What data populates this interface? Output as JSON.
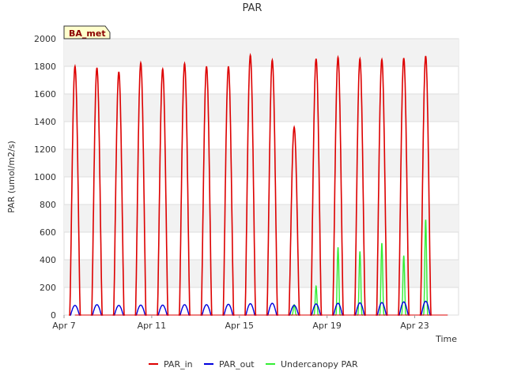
{
  "chart_data": {
    "type": "line",
    "title": "PAR",
    "badge": "BA_met",
    "xlabel": "Time",
    "ylabel": "PAR (umol/m2/s)",
    "ylim": [
      0,
      2000
    ],
    "xlim": [
      7.0,
      25.0
    ],
    "yticks": [
      "0",
      "200",
      "400",
      "600",
      "800",
      "1000",
      "1200",
      "1400",
      "1600",
      "1800",
      "2000"
    ],
    "xticks": [
      {
        "day": 7,
        "label": "Apr 7"
      },
      {
        "day": 11,
        "label": "Apr 11"
      },
      {
        "day": 15,
        "label": "Apr 15"
      },
      {
        "day": 19,
        "label": "Apr 19"
      },
      {
        "day": 23,
        "label": "Apr 23"
      }
    ],
    "grid": true,
    "legend_position": "bottom",
    "series": [
      {
        "name": "PAR_in",
        "color": "#dd0000",
        "daily_peaks": [
          {
            "date": "Apr 7",
            "peak": 1800
          },
          {
            "date": "Apr 8",
            "peak": 1790
          },
          {
            "date": "Apr 9",
            "peak": 1760
          },
          {
            "date": "Apr 10",
            "peak": 1825
          },
          {
            "date": "Apr 11",
            "peak": 1780
          },
          {
            "date": "Apr 12",
            "peak": 1820
          },
          {
            "date": "Apr 13",
            "peak": 1800
          },
          {
            "date": "Apr 14",
            "peak": 1800
          },
          {
            "date": "Apr 15",
            "peak": 1880
          },
          {
            "date": "Apr 16",
            "peak": 1845
          },
          {
            "date": "Apr 17",
            "peak": 1360
          },
          {
            "date": "Apr 18",
            "peak": 1855
          },
          {
            "date": "Apr 19",
            "peak": 1865
          },
          {
            "date": "Apr 20",
            "peak": 1855
          },
          {
            "date": "Apr 21",
            "peak": 1850
          },
          {
            "date": "Apr 22",
            "peak": 1860
          },
          {
            "date": "Apr 23",
            "peak": 1875
          }
        ]
      },
      {
        "name": "PAR_out",
        "color": "#0000dd",
        "daily_peaks": [
          {
            "date": "Apr 7",
            "peak": 70
          },
          {
            "date": "Apr 8",
            "peak": 75
          },
          {
            "date": "Apr 9",
            "peak": 70
          },
          {
            "date": "Apr 10",
            "peak": 72
          },
          {
            "date": "Apr 11",
            "peak": 72
          },
          {
            "date": "Apr 12",
            "peak": 75
          },
          {
            "date": "Apr 13",
            "peak": 75
          },
          {
            "date": "Apr 14",
            "peak": 78
          },
          {
            "date": "Apr 15",
            "peak": 82
          },
          {
            "date": "Apr 16",
            "peak": 85
          },
          {
            "date": "Apr 17",
            "peak": 70
          },
          {
            "date": "Apr 18",
            "peak": 80
          },
          {
            "date": "Apr 19",
            "peak": 85
          },
          {
            "date": "Apr 20",
            "peak": 88
          },
          {
            "date": "Apr 21",
            "peak": 90
          },
          {
            "date": "Apr 22",
            "peak": 95
          },
          {
            "date": "Apr 23",
            "peak": 100
          }
        ]
      },
      {
        "name": "Undercanopy PAR",
        "color": "#33ee33",
        "daily_peaks": [
          {
            "date": "Apr 17",
            "peak": 75
          },
          {
            "date": "Apr 18",
            "peak": 210
          },
          {
            "date": "Apr 19",
            "peak": 490
          },
          {
            "date": "Apr 20",
            "peak": 460
          },
          {
            "date": "Apr 21",
            "peak": 520
          },
          {
            "date": "Apr 22",
            "peak": 430
          },
          {
            "date": "Apr 23",
            "peak": 690
          }
        ]
      }
    ]
  }
}
